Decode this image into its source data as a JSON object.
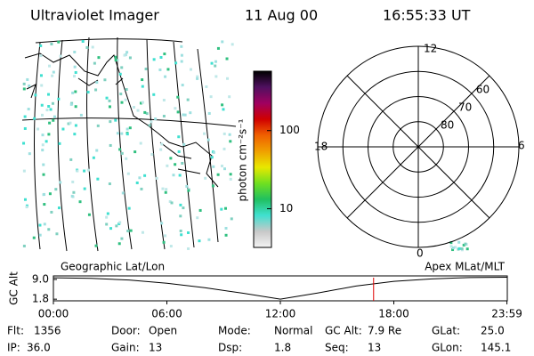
{
  "header": {
    "title": "Ultraviolet Imager",
    "date": "11 Aug 00",
    "time": "16:55:33 UT"
  },
  "colorbar": {
    "label": "photon cm⁻²s⁻¹",
    "scale": "log",
    "lim": [
      3.2,
      575
    ],
    "ticks": [
      10,
      100
    ],
    "colors": [
      "#f4f4f4",
      "#c8c8c8",
      "#40e0d0",
      "#20c060",
      "#70e020",
      "#e8e800",
      "#f0a000",
      "#f06000",
      "#d00000",
      "#a00060",
      "#501060",
      "#000000"
    ]
  },
  "polar": {
    "hour_labels": [
      "12",
      "18",
      "6",
      "0"
    ],
    "lat_labels": [
      60,
      70,
      80
    ],
    "rim_lat": 50
  },
  "timeline": {
    "left_label": "Geographic Lat/Lon",
    "right_label": "Apex MLat/MLT",
    "y_label": "GC Alt",
    "xlim": [
      0,
      24
    ],
    "ylim": [
      1.2,
      10.3
    ],
    "yticks": [
      {
        "value": 9.0,
        "label": "9.0"
      },
      {
        "value": 1.8,
        "label": "1.8"
      }
    ],
    "xticks": [
      {
        "value": 0,
        "label": "00:00"
      },
      {
        "value": 6,
        "label": "06:00"
      },
      {
        "value": 12,
        "label": "12:00"
      },
      {
        "value": 18,
        "label": "18:00"
      },
      {
        "value": 23.98,
        "label": "23:59"
      }
    ],
    "x": [
      0,
      2,
      4,
      6,
      8,
      10,
      12,
      14,
      16,
      18,
      20,
      22,
      24
    ],
    "values": [
      9.6,
      9.4,
      8.8,
      7.6,
      6.0,
      4.0,
      1.8,
      4.1,
      6.6,
      8.3,
      9.2,
      9.7,
      9.8
    ],
    "line_color": "#000000",
    "marker_hour": 16.93,
    "marker_color": "#e00000"
  },
  "stats": [
    [
      {
        "label": "Flt:",
        "value": "1356"
      },
      {
        "label": "Door:",
        "value": "Open"
      },
      {
        "label": "Mode:",
        "value": "Normal"
      },
      {
        "label": "GC Alt:",
        "value": "7.9 Re"
      },
      {
        "label": "GLat:",
        "value": "25.0"
      }
    ],
    [
      {
        "label": "IP:",
        "value": "36.0"
      },
      {
        "label": "Gain:",
        "value": "13"
      },
      {
        "label": "Dsp:",
        "value": "1.8"
      },
      {
        "label": "Seq:",
        "value": "13"
      },
      {
        "label": "GLon:",
        "value": "145.1"
      }
    ]
  ]
}
